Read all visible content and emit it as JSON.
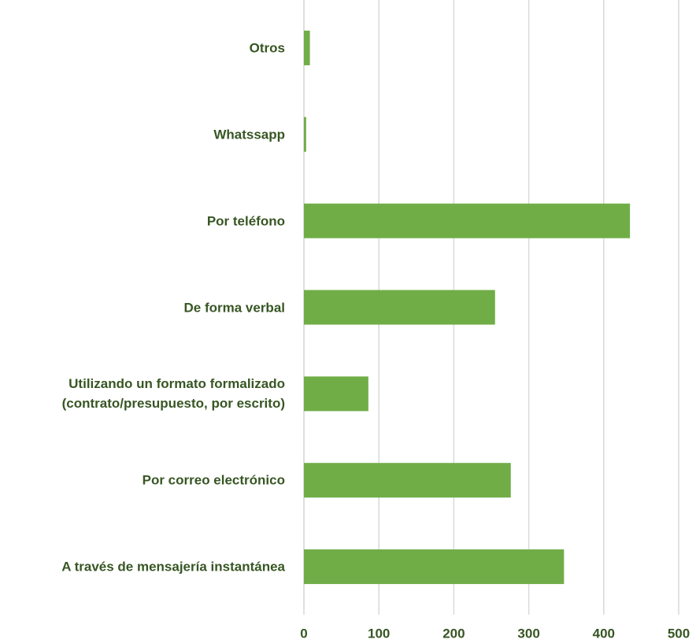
{
  "chart_data": {
    "type": "barh",
    "categories": [
      "Otros",
      "Whatssapp",
      "Por teléfono",
      "De forma verbal",
      "Utilizando un formato formalizado \n(contrato/presupuesto, por escrito)",
      "Por correo electrónico",
      "A través de mensajería instantánea"
    ],
    "values": [
      8,
      3,
      435,
      255,
      86,
      276,
      347
    ],
    "color": "#70ad47",
    "xlim": [
      0,
      500
    ],
    "xticks": [
      0,
      100,
      200,
      300,
      400,
      500
    ],
    "grid": true
  }
}
